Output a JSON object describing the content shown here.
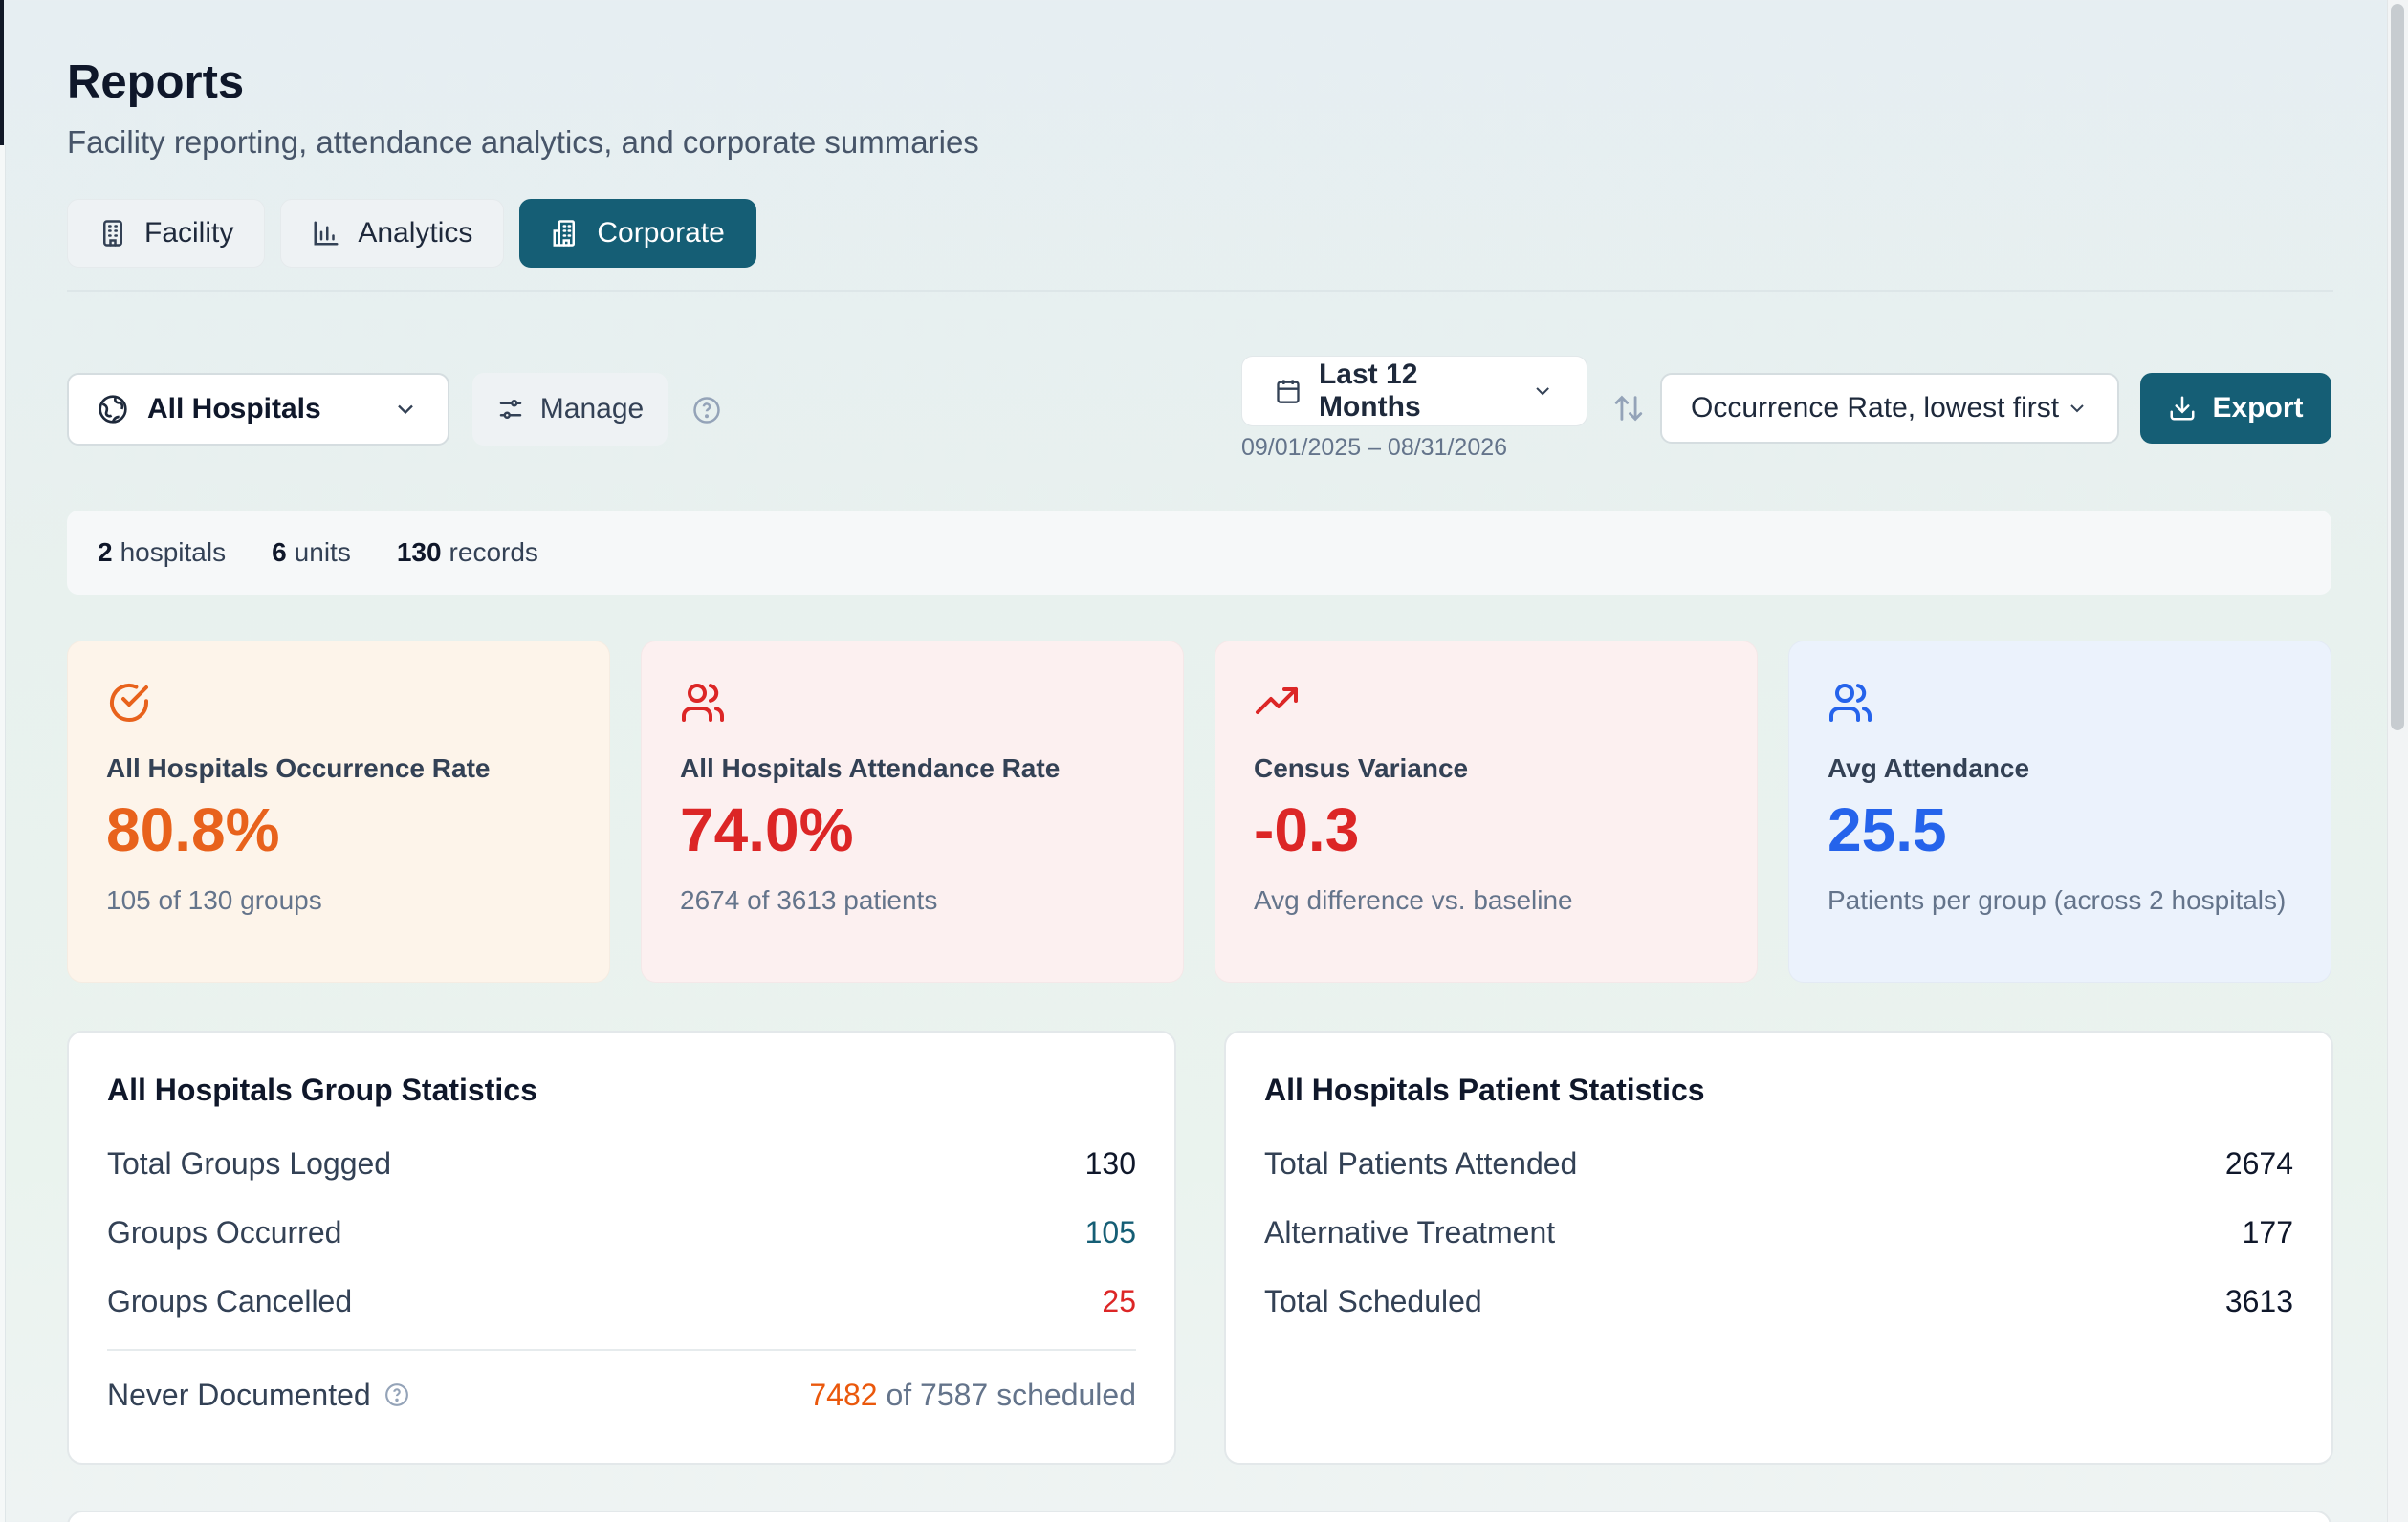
{
  "header": {
    "title": "Reports",
    "subtitle": "Facility reporting, attendance analytics, and corporate summaries"
  },
  "tabs": [
    {
      "label": "Facility",
      "icon": "building-icon",
      "active": false
    },
    {
      "label": "Analytics",
      "icon": "bar-chart-icon",
      "active": false
    },
    {
      "label": "Corporate",
      "icon": "corporate-building-icon",
      "active": true
    }
  ],
  "filters": {
    "hospital_select": "All Hospitals",
    "manage_label": "Manage",
    "period_label": "Last 12 Months",
    "date_range": "09/01/2025 – 08/31/2026",
    "sort_label": "Occurrence Rate, lowest first",
    "export_label": "Export"
  },
  "summary": {
    "hospitals_count": "2",
    "hospitals_label": "hospitals",
    "units_count": "6",
    "units_label": "units",
    "records_count": "130",
    "records_label": "records"
  },
  "cards": [
    {
      "label": "All Hospitals Occurrence Rate",
      "value": "80.8%",
      "sub": "105 of 130 groups",
      "icon": "check-circle-icon",
      "color": "#e8621c"
    },
    {
      "label": "All Hospitals Attendance Rate",
      "value": "74.0%",
      "sub": "2674 of 3613 patients",
      "icon": "users-icon",
      "color": "#dc2626"
    },
    {
      "label": "Census Variance",
      "value": "-0.3",
      "sub": "Avg difference vs. baseline",
      "icon": "trending-up-icon",
      "color": "#dc2626"
    },
    {
      "label": "Avg Attendance",
      "value": "25.5",
      "sub": "Patients per group (across 2 hospitals)",
      "icon": "users-icon",
      "color": "#2563eb"
    }
  ],
  "group_stats": {
    "title": "All Hospitals Group Statistics",
    "rows": [
      {
        "label": "Total Groups Logged",
        "value": "130"
      },
      {
        "label": "Groups Occurred",
        "value": "105"
      },
      {
        "label": "Groups Cancelled",
        "value": "25"
      }
    ],
    "never_documented": {
      "label": "Never Documented",
      "value": "7482",
      "suffix": "of 7587 scheduled"
    }
  },
  "patient_stats": {
    "title": "All Hospitals Patient Statistics",
    "rows": [
      {
        "label": "Total Patients Attended",
        "value": "2674"
      },
      {
        "label": "Alternative Treatment",
        "value": "177"
      },
      {
        "label": "Total Scheduled",
        "value": "3613"
      }
    ]
  },
  "colors": {
    "accent": "#155e75",
    "orange": "#e8621c",
    "red": "#dc2626",
    "blue": "#2563eb"
  }
}
